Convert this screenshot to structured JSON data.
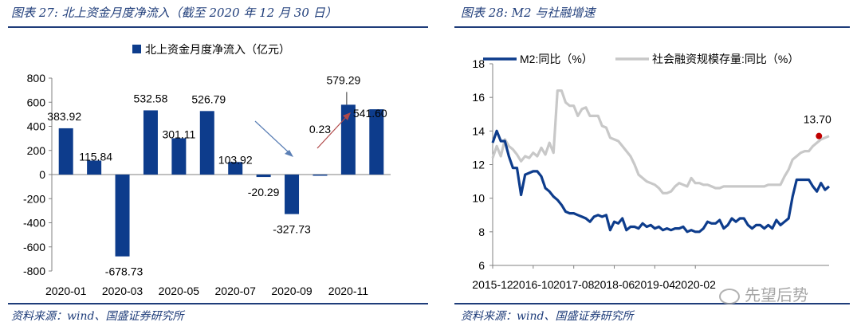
{
  "left_figure": {
    "title": "图表 27:  北上资金月度净流入（截至 2020 年 12 月 30 日）",
    "source": "资料来源：wind、国盛证券研究所"
  },
  "right_figure": {
    "title": "图表 28:  M2 与社融增速",
    "source": "资料来源：wind、国盛证券研究所"
  },
  "watermark": {
    "text": "先望后势",
    "icon": "wechat-icon"
  },
  "colors": {
    "navy": "#0d3c8c",
    "gray": "#c8c8c8",
    "accent": "#1f3d7a",
    "dot": "#c00000"
  },
  "chart_data": [
    {
      "type": "bar",
      "legend": "北上资金月度净流入（亿元）",
      "categories": [
        "2020-01",
        "2020-02",
        "2020-03",
        "2020-04",
        "2020-05",
        "2020-06",
        "2020-07",
        "2020-08",
        "2020-09",
        "2020-10",
        "2020-11",
        "2020-12"
      ],
      "x_tick_labels": [
        "2020-01",
        "2020-03",
        "2020-05",
        "2020-07",
        "2020-09",
        "2020-11"
      ],
      "values": [
        383.92,
        115.84,
        -678.73,
        532.58,
        301.11,
        526.79,
        103.92,
        -20.29,
        -327.73,
        0.23,
        579.29,
        541.6
      ],
      "labels": [
        "383.92",
        "115.84",
        "-678.73",
        "532.58",
        "301.11",
        "526.79",
        "103.92",
        "-20.29",
        "-327.73",
        "0.23",
        "579.29",
        "541.60"
      ],
      "ylim": [
        -800,
        800
      ],
      "y_ticks": [
        800,
        600,
        400,
        200,
        0,
        -200,
        -400,
        -600,
        -800
      ],
      "y_tick_labels": [
        "800",
        "600",
        "400",
        "200",
        "0",
        "-200",
        "-400",
        "-600",
        "-800"
      ]
    },
    {
      "type": "line",
      "series": [
        {
          "name": "M2:同比（%）",
          "values": [
            13.3,
            14.0,
            13.4,
            13.4,
            12.5,
            11.8,
            11.8,
            10.2,
            11.4,
            11.5,
            11.6,
            11.6,
            11.3,
            10.6,
            10.4,
            10.1,
            9.9,
            9.6,
            9.2,
            9.1,
            9.1,
            9.0,
            8.9,
            8.8,
            8.6,
            8.9,
            9.0,
            8.9,
            9.0,
            8.1,
            8.6,
            8.5,
            8.8,
            8.1,
            8.3,
            8.3,
            8.2,
            8.5,
            8.3,
            8.4,
            8.2,
            8.3,
            8.1,
            8.2,
            8.1,
            8.2,
            8.2,
            8.3,
            8.0,
            8.1,
            8.0,
            8.0,
            8.2,
            8.6,
            8.5,
            8.5,
            8.7,
            8.2,
            8.4,
            8.8,
            8.6,
            8.8,
            8.8,
            8.4,
            8.2,
            8.4,
            8.4,
            8.2,
            8.4,
            8.2,
            8.7,
            8.4,
            8.6,
            8.8,
            10.1,
            11.1,
            11.1,
            11.1,
            11.1,
            10.7,
            10.4,
            10.9,
            10.5,
            10.7
          ]
        },
        {
          "name": "社会融资规模存量:同比（%）",
          "values": [
            12.4,
            13.1,
            12.5,
            13.5,
            13.1,
            12.9,
            12.6,
            12.2,
            12.5,
            12.4,
            12.7,
            12.5,
            13.0,
            12.6,
            13.3,
            12.7,
            16.4,
            16.4,
            15.7,
            15.5,
            15.5,
            14.9,
            15.3,
            15.4,
            14.9,
            14.9,
            14.9,
            14.3,
            14.2,
            13.6,
            13.5,
            13.4,
            13.1,
            12.8,
            12.5,
            12.0,
            11.4,
            11.2,
            11.0,
            10.9,
            10.8,
            10.6,
            10.3,
            10.3,
            10.4,
            10.7,
            10.9,
            10.8,
            10.7,
            11.2,
            10.9,
            10.9,
            10.8,
            10.8,
            10.7,
            10.6,
            10.6,
            10.7,
            10.7,
            10.7,
            10.7,
            10.7,
            10.7,
            10.7,
            10.7,
            10.7,
            10.7,
            10.7,
            10.8,
            10.8,
            10.8,
            10.8,
            11.3,
            11.7,
            12.3,
            12.5,
            12.7,
            12.8,
            12.8,
            13.1,
            13.3,
            13.5,
            13.6,
            13.7
          ]
        }
      ],
      "x_tick_labels": [
        "2015-12",
        "2016-10",
        "2017-08",
        "2018-06",
        "2019-04",
        "2020-02"
      ],
      "x_tick_index": [
        0,
        10,
        20,
        30,
        40,
        50
      ],
      "ylim": [
        6,
        18
      ],
      "y_ticks": [
        6,
        8,
        10,
        12,
        14,
        16,
        18
      ],
      "y_tick_labels": [
        "6",
        "8",
        "10",
        "12",
        "14",
        "16",
        "18"
      ],
      "annotation": {
        "label": "13.70",
        "series": 1,
        "index": 83,
        "value": 13.7
      }
    }
  ]
}
